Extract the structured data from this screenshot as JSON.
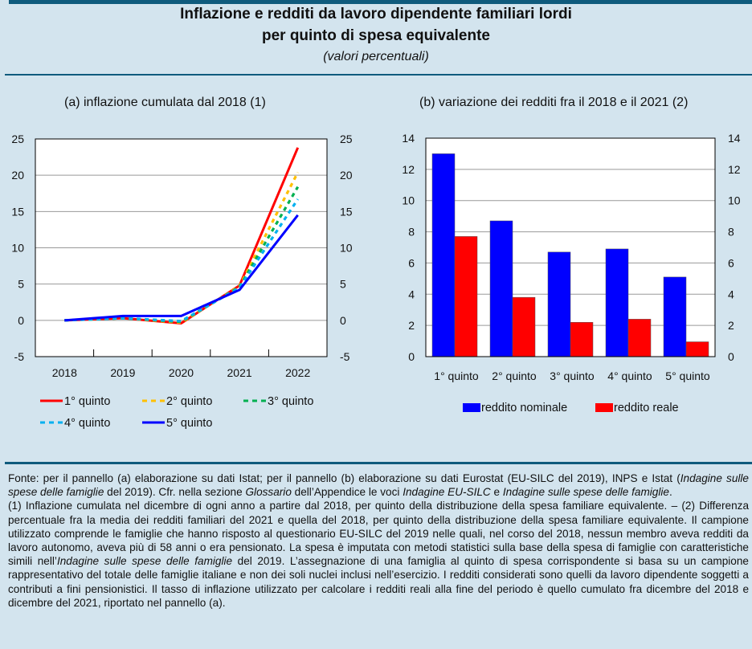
{
  "header": {
    "title_line1": "Inflazione e redditi da lavoro dipendente familiari lordi",
    "title_line2": "per quinto di spesa equivalente",
    "subtitle": "(valori percentuali)"
  },
  "colors": {
    "background": "#d3e4ee",
    "rule": "#0f5b7d",
    "q1": "#ff0000",
    "q2": "#ffc000",
    "q3": "#00b050",
    "q4": "#00b0f0",
    "q5": "#0000ff",
    "nominal": "#0000ff",
    "real": "#ff0000"
  },
  "chart_data": [
    {
      "type": "line",
      "title": "(a) inflazione cumulata dal 2018 (1)",
      "x": [
        "2018",
        "2019",
        "2020",
        "2021",
        "2022"
      ],
      "ylim": [
        -5,
        25
      ],
      "yticks": [
        -5,
        0,
        5,
        10,
        15,
        20,
        25
      ],
      "grid": true,
      "legend_position": "bottom",
      "series": [
        {
          "name": "1° quinto",
          "style": "solid",
          "values": [
            0,
            0.3,
            -0.4,
            4.8,
            23.8
          ]
        },
        {
          "name": "2° quinto",
          "style": "dashed",
          "values": [
            0,
            0.3,
            -0.3,
            4.7,
            20.4
          ]
        },
        {
          "name": "3° quinto",
          "style": "dashed",
          "values": [
            0,
            0.3,
            -0.2,
            4.6,
            18.4
          ]
        },
        {
          "name": "4° quinto",
          "style": "dashed",
          "values": [
            0,
            0.3,
            -0.1,
            4.5,
            16.7
          ]
        },
        {
          "name": "5° quinto",
          "style": "solid",
          "values": [
            0,
            0.6,
            0.6,
            4.2,
            14.5
          ]
        }
      ]
    },
    {
      "type": "bar",
      "title": "(b) variazione dei redditi fra il 2018 e il 2021 (2)",
      "categories": [
        "1° quinto",
        "2° quinto",
        "3° quinto",
        "4° quinto",
        "5° quinto"
      ],
      "ylim": [
        0,
        14
      ],
      "yticks": [
        0,
        2,
        4,
        6,
        8,
        10,
        12,
        14
      ],
      "grid": true,
      "legend_position": "bottom",
      "series": [
        {
          "name": "reddito nominale",
          "values": [
            13.0,
            8.7,
            6.7,
            6.9,
            5.1
          ]
        },
        {
          "name": "reddito reale",
          "values": [
            7.7,
            3.8,
            2.2,
            2.4,
            0.95
          ]
        }
      ]
    }
  ],
  "notes": {
    "fonte_1": "Fonte: per il pannello (a) elaborazione su dati Istat; per il pannello (b) elaborazione su dati Eurostat (EU-SILC del 2019), INPS e Istat (",
    "fonte_it1": "Indagine sulle spese delle famiglie",
    "fonte_2": " del 2019). Cfr. nella sezione ",
    "fonte_it2": "Glossario",
    "fonte_3": " dell’Appendice le voci ",
    "fonte_it3": "Indagine EU-SILC",
    "fonte_4": " e ",
    "fonte_it4": "Indagine sulle spese delle famiglie",
    "fonte_5": ".",
    "note_1": "(1) Inflazione cumulata nel dicembre di ogni anno a partire dal 2018, per quinto della distribuzione della spesa familiare equivalente. – (2) Differenza percentuale fra la media dei redditi familiari del 2021 e quella del 2018, per quinto della distribuzione della spesa familiare equivalente. Il campione utilizzato comprende le famiglie che hanno risposto al questionario EU-SILC del 2019 nelle quali, nel corso del 2018, nessun membro aveva redditi da lavoro autonomo, aveva più di 58 anni o era pensionato. La spesa è imputata con metodi statistici sulla base della spesa di famiglie con caratteristiche simili nell’",
    "note_it": "Indagine sulle spese delle famiglie",
    "note_2": " del 2019. L’assegnazione di una famiglia al quinto di spesa corrispondente si basa su un campione rappresentativo del totale delle famiglie italiane e non dei soli nuclei inclusi nell’esercizio. I redditi considerati sono quelli da lavoro dipendente soggetti a contributi a fini pensionistici. Il tasso di inflazione utilizzato per calcolare i redditi reali alla fine del periodo è quello cumulato fra dicembre del 2018 e dicembre del 2021, riportato nel pannello (a)."
  }
}
